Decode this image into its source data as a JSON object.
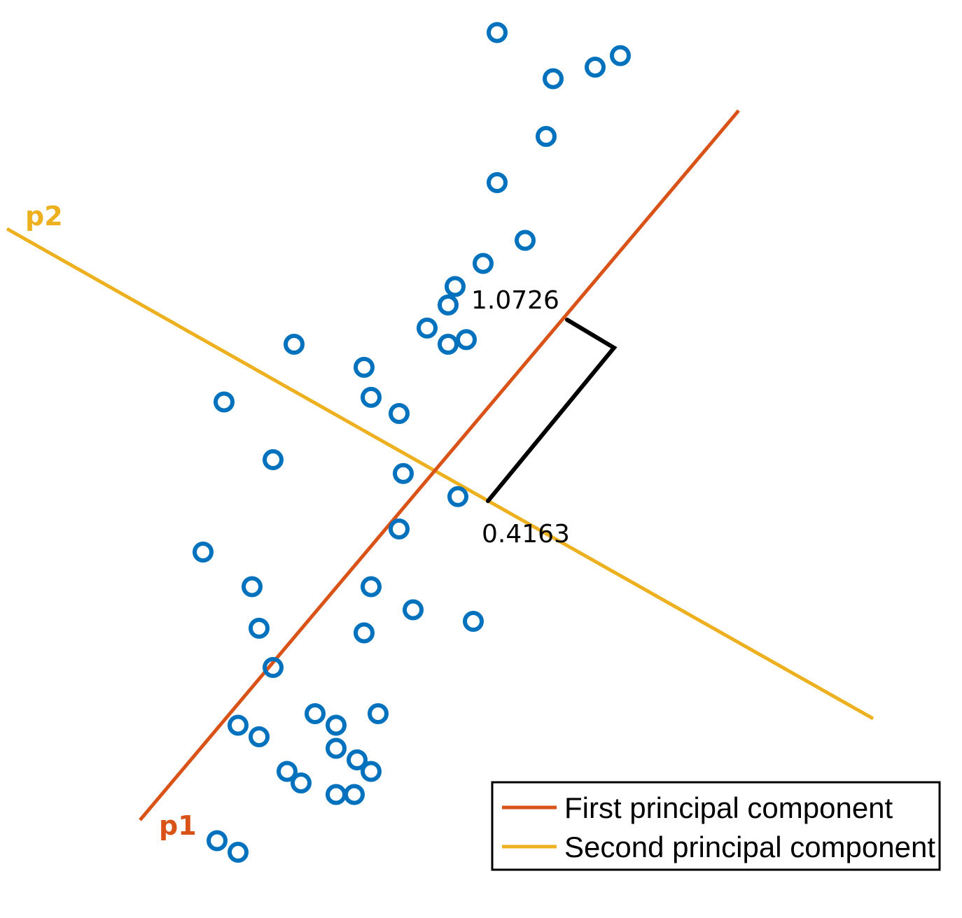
{
  "colors": {
    "points": "#0072BD",
    "pc1": "#D95319",
    "pc2": "#EDB120",
    "projection": "#000000"
  },
  "chart_data": {
    "type": "scatter",
    "title": "",
    "xlabel": "",
    "ylabel": "",
    "points": [
      [
        -2.2,
        3.4
      ],
      [
        -1.84,
        3.52
      ],
      [
        -1.54,
        3.4
      ],
      [
        -3.05,
        2.9
      ],
      [
        -1.64,
        2.6
      ],
      [
        -1.62,
        2.4
      ],
      [
        -2.8,
        2.2
      ],
      [
        -1.7,
        1.8
      ],
      [
        -2.4,
        1.95
      ],
      [
        -2.0,
        1.75
      ],
      [
        -2.05,
        1.5
      ],
      [
        -1.52,
        1.85
      ],
      [
        -2.4,
        1.3
      ],
      [
        -2.2,
        1.05
      ],
      [
        -2.5,
        0.95
      ],
      [
        -2.7,
        0.85
      ],
      [
        -2.75,
        0.77
      ],
      [
        -2.9,
        0.67
      ],
      [
        -2.75,
        0.6
      ],
      [
        -2.62,
        0.62
      ],
      [
        -3.85,
        0.6
      ],
      [
        -3.35,
        0.5
      ],
      [
        -3.3,
        0.37
      ],
      [
        -3.1,
        0.3
      ],
      [
        -4.0,
        0.1
      ],
      [
        -4.35,
        0.35
      ],
      [
        -3.07,
        0.04
      ],
      [
        -2.68,
        -0.06
      ],
      [
        -3.1,
        -0.2
      ],
      [
        -4.15,
        -0.45
      ],
      [
        -4.1,
        -0.63
      ],
      [
        -4.5,
        -0.3
      ],
      [
        -3.3,
        -0.45
      ],
      [
        -3.0,
        -0.55
      ],
      [
        -2.57,
        -0.6
      ],
      [
        -3.35,
        -0.65
      ],
      [
        -4.0,
        -0.8
      ],
      [
        -3.7,
        -1.0
      ],
      [
        -3.55,
        -1.05
      ],
      [
        -3.25,
        -1.0
      ],
      [
        -3.55,
        -1.15
      ],
      [
        -4.25,
        -1.05
      ],
      [
        -4.1,
        -1.1
      ],
      [
        -3.9,
        -1.25
      ],
      [
        -3.4,
        -1.2
      ],
      [
        -3.3,
        -1.25
      ],
      [
        -3.55,
        -1.35
      ],
      [
        -3.8,
        -1.3
      ],
      [
        -4.4,
        -1.55
      ],
      [
        -4.25,
        -1.6
      ],
      [
        -3.42,
        -1.35
      ]
    ],
    "series": [
      {
        "name": "First principal component"
      },
      {
        "name": "Second principal component"
      }
    ],
    "pc_labels": {
      "pc1": "p1",
      "pc2": "p2"
    },
    "annotations": {
      "projection_pc1": "1.0726",
      "projection_pc2": "0.4163"
    },
    "legend_position": "bottom-right",
    "grid": false
  }
}
